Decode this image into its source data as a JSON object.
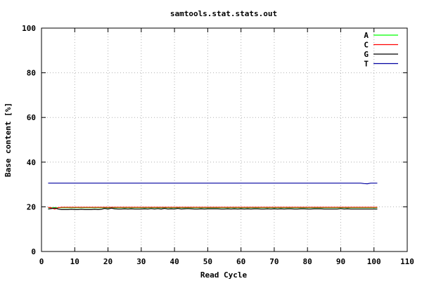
{
  "chart_data": {
    "type": "line",
    "title": "samtools.stat.stats.out",
    "xlabel": "Read Cycle",
    "ylabel": "Base content [%]",
    "xlim": [
      0,
      110
    ],
    "ylim": [
      0,
      100
    ],
    "xticks": [
      0,
      10,
      20,
      30,
      40,
      50,
      60,
      70,
      80,
      90,
      100,
      110
    ],
    "yticks": [
      0,
      20,
      40,
      60,
      80,
      100
    ],
    "grid": true,
    "legend_position": "top-right",
    "x_range": [
      2,
      101
    ],
    "series": [
      {
        "name": "A",
        "color": "#00ff00",
        "values": [
          19.6,
          19.6,
          19.6,
          19.6,
          19.6,
          19.6,
          19.6,
          19.6,
          19.6,
          19.6,
          19.6,
          19.6,
          19.6,
          19.6,
          19.6,
          19.6,
          19.6,
          19.6,
          19.6,
          19.6,
          19.6,
          19.6,
          19.6,
          19.6,
          19.6,
          19.6,
          19.6,
          19.6,
          19.6,
          19.6,
          19.6,
          19.6,
          19.6,
          19.6,
          19.6,
          19.6,
          19.6,
          19.6,
          19.6,
          19.6,
          19.6,
          19.6,
          19.6,
          19.6,
          19.6,
          19.6,
          19.6,
          19.6,
          19.6,
          19.6,
          19.6,
          19.6,
          19.6,
          19.6,
          19.6,
          19.6,
          19.6,
          19.6,
          19.6,
          19.6,
          19.6,
          19.6,
          19.6,
          19.6,
          19.6,
          19.6,
          19.6,
          19.6,
          19.6,
          19.6,
          19.6,
          19.6,
          19.6,
          19.6,
          19.6,
          19.6,
          19.6,
          19.6,
          19.6,
          19.6,
          19.6,
          19.6,
          19.6,
          19.6,
          19.6,
          19.6,
          19.6,
          19.6,
          19.6,
          19.6,
          19.6,
          19.6,
          19.6,
          19.6,
          19.6,
          19.6,
          19.6,
          19.6,
          19.6,
          19.6
        ]
      },
      {
        "name": "C",
        "color": "#ff0000",
        "values": [
          19.8,
          19.5,
          19.0,
          19.6,
          19.8,
          19.8,
          19.8,
          19.8,
          19.8,
          19.8,
          19.8,
          19.8,
          19.8,
          19.8,
          19.8,
          19.8,
          19.8,
          19.8,
          19.8,
          19.8,
          19.8,
          19.8,
          19.8,
          19.8,
          19.8,
          19.8,
          19.8,
          19.8,
          19.8,
          19.8,
          19.8,
          19.8,
          19.8,
          19.8,
          19.8,
          19.8,
          19.8,
          19.8,
          19.8,
          19.8,
          19.8,
          19.8,
          19.8,
          19.8,
          19.8,
          19.8,
          19.8,
          19.8,
          19.8,
          19.8,
          19.8,
          19.8,
          19.8,
          19.8,
          19.8,
          19.8,
          19.8,
          19.8,
          19.8,
          19.8,
          19.8,
          19.8,
          19.8,
          19.8,
          19.8,
          19.8,
          19.8,
          19.8,
          19.8,
          19.8,
          19.8,
          19.8,
          19.8,
          19.8,
          19.8,
          19.8,
          19.8,
          19.8,
          19.8,
          19.8,
          19.8,
          19.8,
          19.8,
          19.8,
          19.8,
          19.8,
          19.8,
          19.8,
          19.8,
          19.8,
          19.8,
          19.8,
          19.8,
          19.8,
          19.8,
          19.8,
          19.8,
          19.8,
          19.8,
          19.8
        ]
      },
      {
        "name": "G",
        "color": "#000000",
        "values": [
          19.0,
          19.2,
          19.5,
          19.0,
          18.8,
          18.8,
          18.8,
          18.9,
          18.8,
          18.8,
          18.9,
          18.8,
          18.8,
          18.8,
          18.9,
          18.8,
          18.9,
          19.3,
          19.0,
          19.4,
          19.1,
          19.0,
          19.0,
          19.1,
          19.0,
          19.1,
          19.0,
          19.0,
          19.0,
          19.1,
          19.0,
          19.2,
          19.0,
          19.2,
          19.0,
          19.3,
          19.0,
          19.1,
          19.0,
          19.3,
          19.0,
          19.1,
          19.2,
          19.1,
          19.0,
          19.0,
          19.1,
          19.0,
          19.1,
          19.1,
          19.1,
          19.1,
          19.0,
          19.0,
          19.1,
          19.0,
          19.1,
          19.0,
          19.1,
          19.0,
          19.1,
          19.0,
          19.1,
          19.1,
          19.0,
          19.0,
          19.1,
          19.0,
          19.1,
          19.0,
          19.1,
          19.0,
          19.1,
          19.1,
          19.0,
          19.0,
          19.1,
          19.1,
          19.0,
          19.0,
          19.1,
          19.1,
          19.1,
          19.0,
          19.0,
          19.0,
          19.0,
          19.0,
          19.2,
          19.0,
          19.1,
          19.0,
          19.0,
          19.0,
          19.0,
          19.0,
          19.0,
          19.0,
          19.0,
          19.0
        ]
      },
      {
        "name": "T",
        "color": "#0000a0",
        "values": [
          30.6,
          30.6,
          30.6,
          30.6,
          30.6,
          30.6,
          30.6,
          30.6,
          30.6,
          30.6,
          30.6,
          30.6,
          30.6,
          30.6,
          30.6,
          30.6,
          30.6,
          30.6,
          30.6,
          30.6,
          30.6,
          30.6,
          30.6,
          30.6,
          30.6,
          30.6,
          30.6,
          30.6,
          30.6,
          30.6,
          30.6,
          30.6,
          30.6,
          30.6,
          30.6,
          30.6,
          30.6,
          30.6,
          30.6,
          30.6,
          30.6,
          30.6,
          30.6,
          30.6,
          30.6,
          30.6,
          30.6,
          30.6,
          30.6,
          30.6,
          30.6,
          30.6,
          30.6,
          30.6,
          30.6,
          30.6,
          30.6,
          30.6,
          30.6,
          30.6,
          30.6,
          30.6,
          30.6,
          30.6,
          30.6,
          30.6,
          30.6,
          30.6,
          30.6,
          30.6,
          30.6,
          30.6,
          30.6,
          30.6,
          30.6,
          30.6,
          30.6,
          30.6,
          30.6,
          30.6,
          30.6,
          30.6,
          30.6,
          30.6,
          30.6,
          30.6,
          30.6,
          30.6,
          30.6,
          30.6,
          30.6,
          30.6,
          30.6,
          30.6,
          30.6,
          30.4,
          30.3,
          30.6,
          30.6,
          30.6
        ]
      }
    ]
  }
}
